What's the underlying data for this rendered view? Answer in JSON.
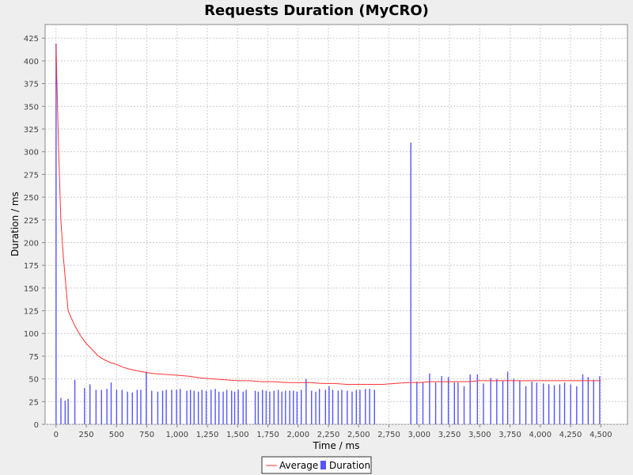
{
  "chart_data": {
    "type": "bar",
    "title": "Requests Duration (MyCRO)",
    "xlabel": "Time  /  ms",
    "ylabel": "Duration  /  ms",
    "xlim": [
      -90,
      4720
    ],
    "ylim": [
      0,
      440
    ],
    "xticks": [
      0,
      250,
      500,
      750,
      1000,
      1250,
      1500,
      1750,
      2000,
      2250,
      2500,
      2750,
      3000,
      3250,
      3500,
      3750,
      4000,
      4250,
      4500
    ],
    "xtick_labels": [
      "0",
      "250",
      "500",
      "750",
      "1,000",
      "1,250",
      "1,500",
      "1,750",
      "2,000",
      "2,250",
      "2,500",
      "2,750",
      "3,000",
      "3,250",
      "3,500",
      "3,750",
      "4,000",
      "4,250",
      "4,500"
    ],
    "yticks": [
      0,
      25,
      50,
      75,
      100,
      125,
      150,
      175,
      200,
      225,
      250,
      275,
      300,
      325,
      350,
      375,
      400,
      425
    ],
    "ytick_labels": [
      "0",
      "25",
      "50",
      "75",
      "100",
      "125",
      "150",
      "175",
      "200",
      "225",
      "250",
      "275",
      "300",
      "325",
      "350",
      "375",
      "400",
      "425"
    ],
    "grid": true,
    "legend_position": "bottom-center",
    "series": [
      {
        "name": "Duration",
        "type": "bar",
        "color": "#5555ff",
        "x": [
          0,
          40,
          75,
          100,
          155,
          235,
          280,
          330,
          375,
          420,
          455,
          500,
          545,
          590,
          630,
          670,
          700,
          745,
          790,
          840,
          880,
          910,
          955,
          995,
          1025,
          1080,
          1110,
          1140,
          1175,
          1205,
          1240,
          1280,
          1315,
          1345,
          1380,
          1410,
          1450,
          1475,
          1505,
          1545,
          1570,
          1645,
          1670,
          1705,
          1735,
          1765,
          1800,
          1835,
          1865,
          1895,
          1930,
          1960,
          1990,
          2025,
          2065,
          2110,
          2145,
          2175,
          2225,
          2255,
          2285,
          2330,
          2360,
          2405,
          2445,
          2480,
          2510,
          2555,
          2590,
          2630,
          2930,
          2980,
          3030,
          3085,
          3135,
          3185,
          3240,
          3290,
          3320,
          3370,
          3420,
          3480,
          3530,
          3590,
          3640,
          3690,
          3730,
          3780,
          3830,
          3880,
          3930,
          3970,
          4025,
          4070,
          4115,
          4160,
          4200,
          4250,
          4300,
          4350,
          4395,
          4440,
          4490
        ],
        "values": [
          419,
          29,
          26,
          28,
          49,
          40,
          44,
          38,
          38,
          39,
          46,
          38,
          38,
          36,
          35,
          38,
          38,
          58,
          37,
          36,
          37,
          38,
          38,
          38,
          39,
          37,
          38,
          37,
          36,
          38,
          37,
          38,
          39,
          36,
          36,
          38,
          37,
          36,
          38,
          36,
          38,
          37,
          36,
          38,
          37,
          36,
          37,
          38,
          36,
          37,
          37,
          37,
          36,
          38,
          50,
          37,
          36,
          39,
          38,
          42,
          38,
          37,
          38,
          37,
          36,
          38,
          38,
          39,
          39,
          38,
          310,
          47,
          46,
          56,
          46,
          53,
          52,
          46,
          46,
          42,
          55,
          55,
          45,
          51,
          50,
          48,
          58,
          50,
          48,
          42,
          47,
          46,
          45,
          44,
          43,
          44,
          46,
          44,
          42,
          55,
          52,
          49,
          53
        ]
      },
      {
        "name": "Average",
        "type": "line",
        "color": "#ff3333",
        "x": [
          0,
          20,
          40,
          60,
          80,
          100,
          150,
          200,
          250,
          300,
          350,
          400,
          450,
          500,
          550,
          600,
          700,
          800,
          900,
          1000,
          1100,
          1200,
          1300,
          1400,
          1500,
          1600,
          1700,
          1800,
          1900,
          2000,
          2100,
          2200,
          2300,
          2400,
          2500,
          2600,
          2700,
          2800,
          2900,
          3000,
          3100,
          3200,
          3300,
          3400,
          3500,
          3600,
          3700,
          3800,
          3900,
          4000,
          4100,
          4200,
          4300,
          4400,
          4500
        ],
        "values": [
          419,
          310,
          225,
          185,
          155,
          125,
          110,
          98,
          89,
          82,
          75,
          71,
          68,
          66,
          63,
          61,
          58,
          56,
          55,
          54,
          53,
          51,
          50,
          49,
          48,
          48,
          47,
          47,
          46,
          46,
          46,
          45,
          45,
          44,
          44,
          44,
          44,
          45,
          46,
          46,
          47,
          47,
          47,
          47,
          48,
          48,
          48,
          48,
          48,
          48,
          48,
          48,
          48,
          48,
          48
        ]
      }
    ],
    "legend": [
      {
        "label": "Average",
        "color": "#ff3333",
        "kind": "line"
      },
      {
        "label": "Duration",
        "color": "#5555ff",
        "kind": "box"
      }
    ]
  }
}
